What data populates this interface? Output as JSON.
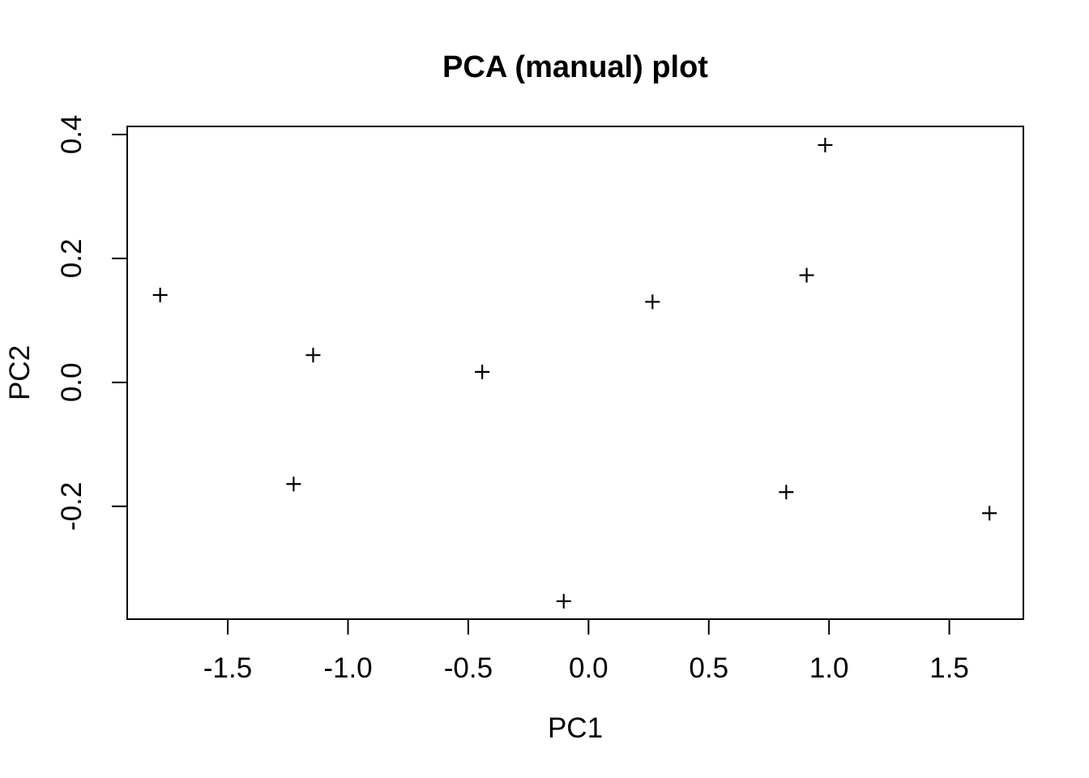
{
  "page": {
    "background": "#ffffff",
    "foreground": "#000000"
  },
  "chart_data": {
    "type": "scatter",
    "title": "PCA (manual) plot",
    "xlabel": "PC1",
    "ylabel": "PC2",
    "point_symbol": "+",
    "point_color": "#000000",
    "grid": false,
    "legend": null,
    "xlim": [
      -1.918,
      1.808
    ],
    "ylim": [
      -0.382,
      0.413
    ],
    "x_ticks": [
      -1.5,
      -1.0,
      -0.5,
      0.0,
      0.5,
      1.0,
      1.5
    ],
    "x_tick_labels": [
      "-1.5",
      "-1.0",
      "-0.5",
      "0.0",
      "0.5",
      "1.0",
      "1.5"
    ],
    "y_ticks": [
      -0.2,
      0.0,
      0.2,
      0.4
    ],
    "y_tick_labels": [
      "-0.2",
      "0.0",
      "0.2",
      "0.4"
    ],
    "points": [
      {
        "x": -1.781,
        "y": 0.141
      },
      {
        "x": -1.226,
        "y": -0.164
      },
      {
        "x": -1.145,
        "y": 0.044
      },
      {
        "x": -0.442,
        "y": 0.017
      },
      {
        "x": -0.103,
        "y": -0.353
      },
      {
        "x": 0.266,
        "y": 0.13
      },
      {
        "x": 0.822,
        "y": -0.177
      },
      {
        "x": 0.907,
        "y": 0.173
      },
      {
        "x": 0.984,
        "y": 0.383
      },
      {
        "x": 1.667,
        "y": -0.211
      }
    ]
  }
}
